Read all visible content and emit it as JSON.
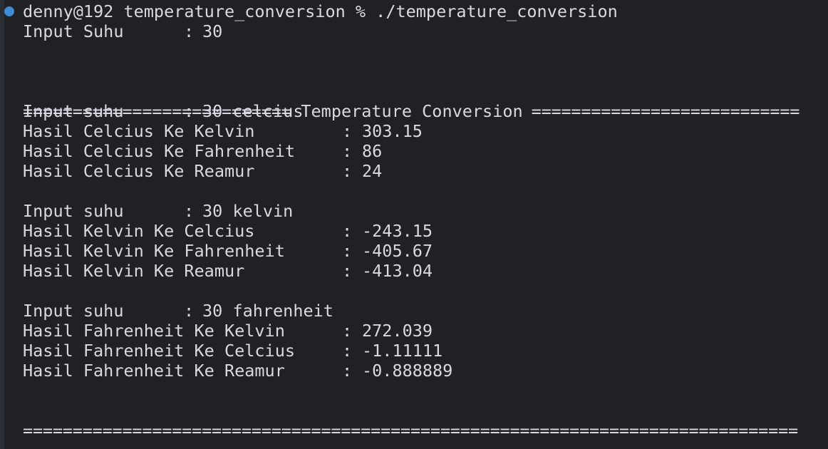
{
  "terminal": {
    "command_line": "denny@192 temperature_conversion % ./temperature_conversion",
    "input_prompt": {
      "label": "Input Suhu",
      "separator": ":",
      "value": "30"
    },
    "header": {
      "left_rule": "===========================",
      "title": "Temperature Conversion",
      "right_rule": "==========================="
    },
    "sections": [
      {
        "input": {
          "label": "Input suhu",
          "separator": ":",
          "value": "30 celcius"
        },
        "results": [
          {
            "label": "Hasil Celcius Ke Kelvin",
            "separator": ":",
            "value": "303.15"
          },
          {
            "label": "Hasil Celcius Ke Fahrenheit",
            "separator": ":",
            "value": "86"
          },
          {
            "label": "Hasil Celcius Ke Reamur",
            "separator": ":",
            "value": "24"
          }
        ]
      },
      {
        "input": {
          "label": "Input suhu",
          "separator": ":",
          "value": "30 kelvin"
        },
        "results": [
          {
            "label": "Hasil Kelvin Ke Celcius",
            "separator": ":",
            "value": "-243.15"
          },
          {
            "label": "Hasil Kelvin Ke Fahrenheit",
            "separator": ":",
            "value": "-405.67"
          },
          {
            "label": "Hasil Kelvin Ke Reamur",
            "separator": ":",
            "value": "-413.04"
          }
        ]
      },
      {
        "input": {
          "label": "Input suhu",
          "separator": ":",
          "value": "30 fahrenheit"
        },
        "results": [
          {
            "label": "Hasil Fahrenheit Ke Kelvin",
            "separator": ":",
            "value": "272.039"
          },
          {
            "label": "Hasil Fahrenheit Ke Celcius",
            "separator": ":",
            "value": "-1.11111"
          },
          {
            "label": "Hasil Fahrenheit Ke Reamur",
            "separator": ":",
            "value": "-0.888889"
          }
        ]
      }
    ],
    "footer_rule": "==============================================================================",
    "colors": {
      "background": "#1f2125",
      "text": "#d7dae0",
      "prompt_dot": "#3f8bd5"
    }
  }
}
